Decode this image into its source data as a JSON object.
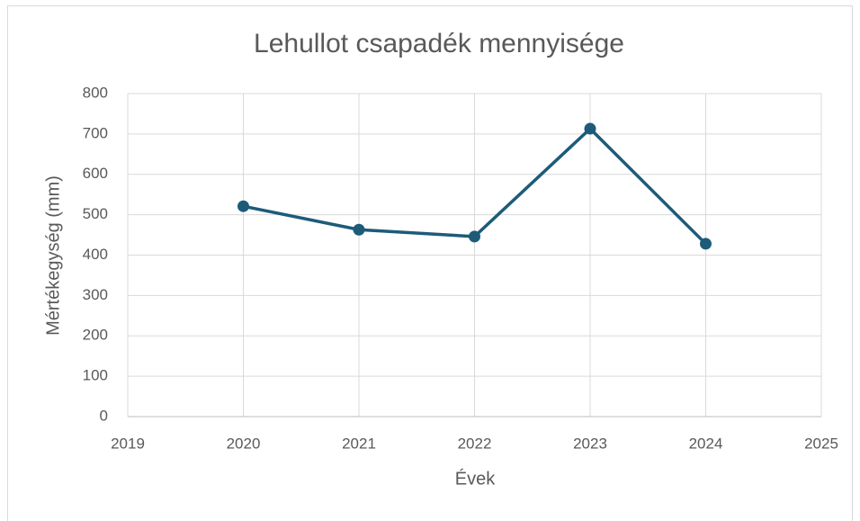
{
  "chart_data": {
    "type": "line",
    "title": "Lehullot csapadék mennyisége",
    "x_label": "Évek",
    "y_label": "Mértékegység (mm)",
    "x": [
      2020,
      2021,
      2022,
      2023,
      2024
    ],
    "series": [
      {
        "name": "Lehullot csapadék mennyisége",
        "color": "#1d5b79",
        "values": [
          521,
          463,
          446,
          713,
          428
        ]
      }
    ],
    "xlim": [
      2019,
      2025
    ],
    "xticks": [
      2019,
      2020,
      2021,
      2022,
      2023,
      2024,
      2025
    ],
    "ylim": [
      0,
      800
    ],
    "yticks": [
      0,
      100,
      200,
      300,
      400,
      500,
      600,
      700,
      800
    ],
    "grid": true
  }
}
